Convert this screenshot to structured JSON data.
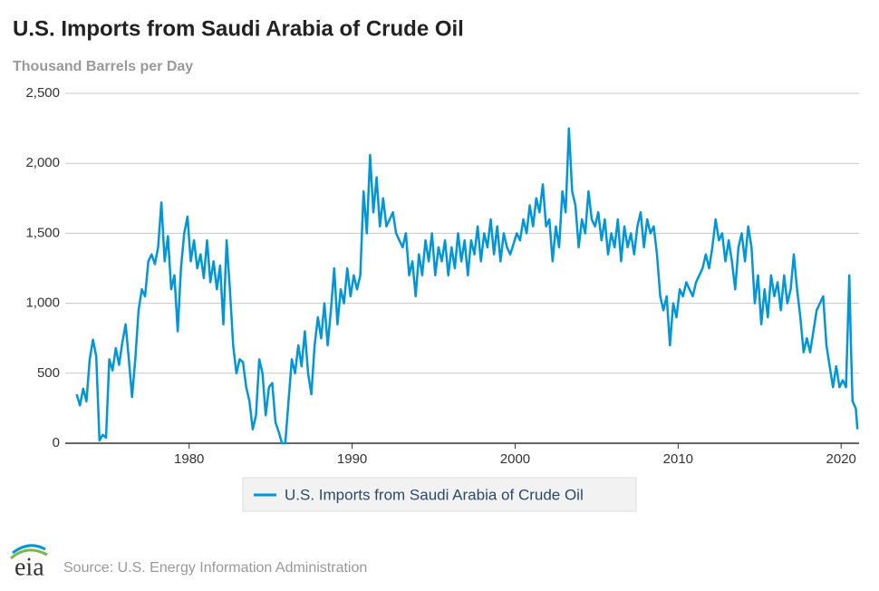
{
  "chart_data": {
    "type": "line",
    "title": "U.S. Imports from Saudi Arabia of Crude Oil",
    "subtitle": "Thousand Barrels per Day",
    "source": "Source: U.S. Energy Information Administration",
    "logo": "eia",
    "xlim": [
      1972.4,
      2021.1
    ],
    "xticks": [
      1980,
      1990,
      2000,
      2010,
      2020
    ],
    "ylim": [
      0,
      2500
    ],
    "yticks": [
      0,
      {
        "value": 500,
        "label": "500"
      },
      {
        "value": 1000,
        "label": "1,000"
      },
      {
        "value": 1500,
        "label": "1,500"
      },
      {
        "value": 2000,
        "label": "2,000"
      },
      {
        "value": 2500,
        "label": "2,500"
      }
    ],
    "grid": true,
    "x": [
      1973.1,
      1973.3,
      1973.5,
      1973.7,
      1973.9,
      1974.1,
      1974.3,
      1974.5,
      1974.7,
      1974.9,
      1975.1,
      1975.3,
      1975.5,
      1975.7,
      1975.9,
      1976.1,
      1976.3,
      1976.5,
      1976.7,
      1976.9,
      1977.1,
      1977.3,
      1977.5,
      1977.7,
      1977.9,
      1978.1,
      1978.3,
      1978.5,
      1978.7,
      1978.9,
      1979.1,
      1979.3,
      1979.5,
      1979.7,
      1979.9,
      1980.1,
      1980.3,
      1980.5,
      1980.7,
      1980.9,
      1981.1,
      1981.3,
      1981.5,
      1981.7,
      1981.9,
      1982.1,
      1982.3,
      1982.5,
      1982.7,
      1982.9,
      1983.1,
      1983.3,
      1983.5,
      1983.7,
      1983.9,
      1984.1,
      1984.3,
      1984.5,
      1984.7,
      1984.9,
      1985.1,
      1985.3,
      1985.5,
      1985.7,
      1985.9,
      1986.1,
      1986.3,
      1986.5,
      1986.7,
      1986.9,
      1987.1,
      1987.3,
      1987.5,
      1987.7,
      1987.9,
      1988.1,
      1988.3,
      1988.5,
      1988.7,
      1988.9,
      1989.1,
      1989.3,
      1989.5,
      1989.7,
      1989.9,
      1990.1,
      1990.3,
      1990.5,
      1990.7,
      1990.9,
      1991.1,
      1991.3,
      1991.5,
      1991.7,
      1991.9,
      1992.1,
      1992.3,
      1992.5,
      1992.7,
      1993.1,
      1993.3,
      1993.5,
      1993.7,
      1993.9,
      1994.1,
      1994.3,
      1994.5,
      1994.7,
      1994.9,
      1995.1,
      1995.3,
      1995.5,
      1995.7,
      1995.9,
      1996.1,
      1996.3,
      1996.5,
      1996.7,
      1996.9,
      1997.1,
      1997.3,
      1997.5,
      1997.7,
      1997.9,
      1998.1,
      1998.3,
      1998.5,
      1998.7,
      1998.9,
      1999.1,
      1999.3,
      1999.5,
      1999.7,
      2000.1,
      2000.3,
      2000.5,
      2000.7,
      2000.9,
      2001.1,
      2001.3,
      2001.5,
      2001.7,
      2001.9,
      2002.1,
      2002.3,
      2002.5,
      2002.7,
      2002.9,
      2003.1,
      2003.3,
      2003.5,
      2003.7,
      2003.9,
      2004.1,
      2004.3,
      2004.5,
      2004.7,
      2004.9,
      2005.1,
      2005.3,
      2005.5,
      2005.7,
      2005.9,
      2006.1,
      2006.3,
      2006.5,
      2006.7,
      2006.9,
      2007.1,
      2007.3,
      2007.5,
      2007.7,
      2007.9,
      2008.1,
      2008.3,
      2008.5,
      2008.7,
      2008.9,
      2009.1,
      2009.3,
      2009.5,
      2009.7,
      2009.9,
      2010.1,
      2010.3,
      2010.5,
      2010.7,
      2010.9,
      2011.1,
      2011.3,
      2011.5,
      2011.7,
      2011.9,
      2012.1,
      2012.3,
      2012.5,
      2012.7,
      2012.9,
      2013.1,
      2013.3,
      2013.5,
      2013.7,
      2013.9,
      2014.1,
      2014.3,
      2014.5,
      2014.7,
      2014.9,
      2015.1,
      2015.3,
      2015.5,
      2015.7,
      2015.9,
      2016.1,
      2016.3,
      2016.5,
      2016.7,
      2016.9,
      2017.1,
      2017.3,
      2017.5,
      2017.7,
      2017.9,
      2018.1,
      2018.3,
      2018.5,
      2018.7,
      2018.9,
      2019.1,
      2019.3,
      2019.5,
      2019.7,
      2019.9,
      2020.1,
      2020.3,
      2020.5,
      2020.6,
      2020.7,
      2020.9,
      2021.0
    ],
    "series": [
      {
        "name": "U.S. Imports from Saudi Arabia of Crude Oil",
        "color": "#0096d7",
        "values": [
          350,
          270,
          390,
          300,
          600,
          740,
          620,
          20,
          60,
          40,
          600,
          520,
          680,
          560,
          720,
          850,
          600,
          330,
          600,
          950,
          1100,
          1050,
          1300,
          1350,
          1280,
          1400,
          1720,
          1300,
          1480,
          1100,
          1200,
          800,
          1250,
          1500,
          1620,
          1300,
          1450,
          1250,
          1350,
          1180,
          1450,
          1150,
          1300,
          1100,
          1270,
          850,
          1450,
          1100,
          700,
          500,
          600,
          580,
          400,
          300,
          100,
          200,
          600,
          500,
          200,
          400,
          430,
          150,
          80,
          0,
          0,
          300,
          600,
          500,
          700,
          550,
          800,
          500,
          350,
          700,
          900,
          750,
          1000,
          700,
          950,
          1250,
          850,
          1100,
          1000,
          1250,
          1050,
          1200,
          1100,
          1200,
          1800,
          1500,
          2060,
          1650,
          1900,
          1550,
          1750,
          1550,
          1600,
          1650,
          1500,
          1400,
          1500,
          1200,
          1300,
          1050,
          1350,
          1200,
          1450,
          1300,
          1500,
          1200,
          1400,
          1300,
          1450,
          1200,
          1400,
          1250,
          1500,
          1300,
          1450,
          1200,
          1450,
          1350,
          1550,
          1300,
          1500,
          1400,
          1600,
          1350,
          1550,
          1300,
          1500,
          1400,
          1350,
          1500,
          1450,
          1600,
          1500,
          1700,
          1550,
          1750,
          1650,
          1850,
          1550,
          1600,
          1300,
          1550,
          1400,
          1800,
          1650,
          2250,
          1800,
          1700,
          1400,
          1600,
          1500,
          1800,
          1600,
          1550,
          1650,
          1450,
          1600,
          1350,
          1500,
          1400,
          1600,
          1300,
          1550,
          1400,
          1500,
          1350,
          1550,
          1650,
          1400,
          1600,
          1500,
          1550,
          1350,
          1050,
          950,
          1050,
          700,
          1000,
          900,
          1100,
          1050,
          1150,
          1100,
          1050,
          1150,
          1200,
          1250,
          1350,
          1250,
          1400,
          1600,
          1450,
          1500,
          1300,
          1450,
          1300,
          1100,
          1400,
          1500,
          1300,
          1550,
          1400,
          1000,
          1200,
          850,
          1100,
          900,
          1200,
          1050,
          1150,
          950,
          1200,
          1000,
          1100,
          1350,
          1100,
          900,
          650,
          750,
          650,
          800,
          950,
          1000,
          1050,
          700,
          550,
          400,
          550,
          400,
          450,
          400,
          1200,
          700,
          300,
          250,
          100
        ]
      }
    ]
  }
}
